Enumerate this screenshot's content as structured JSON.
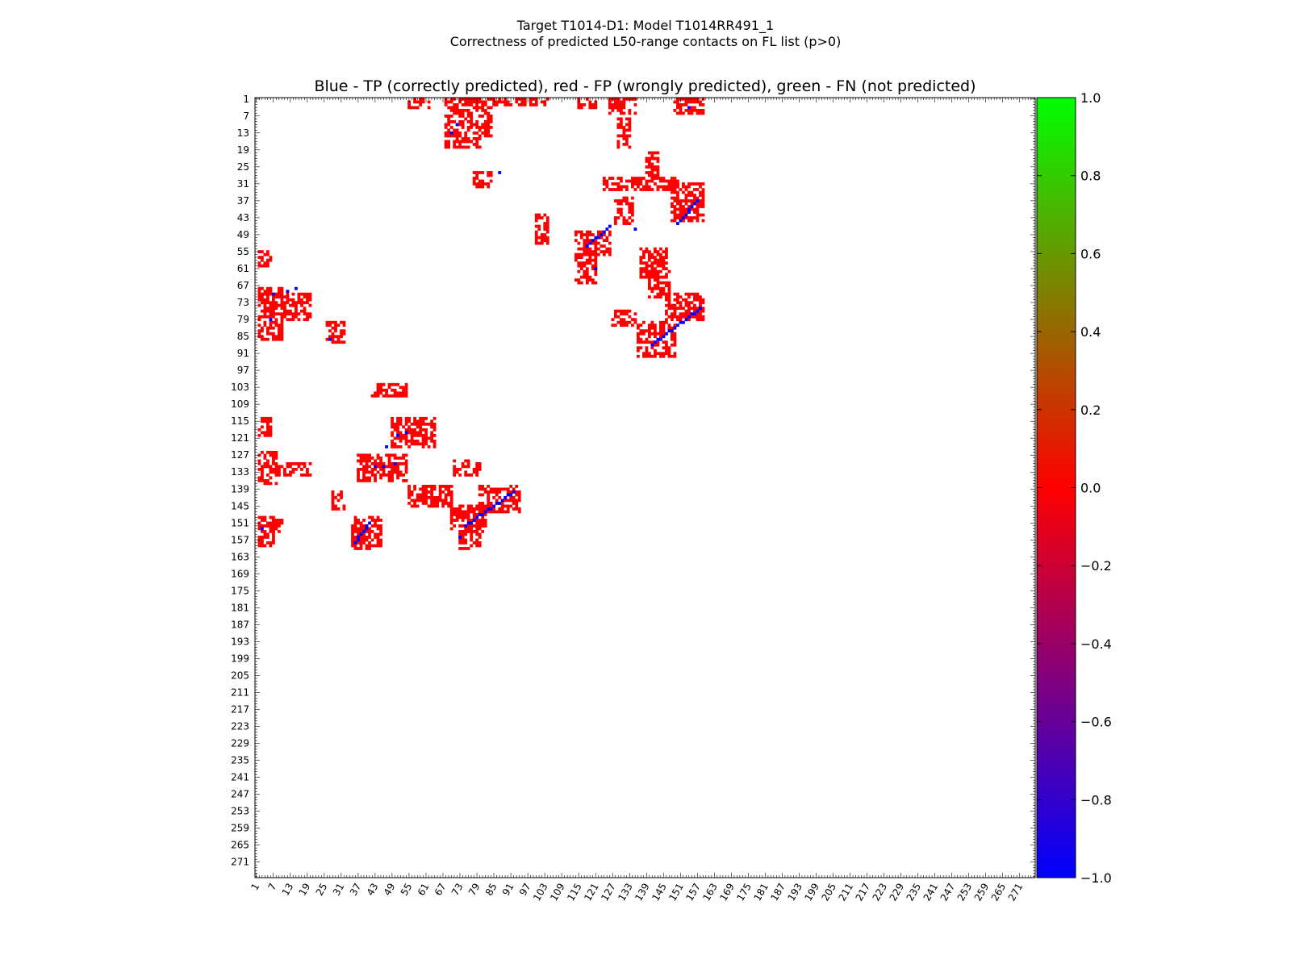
{
  "figure": {
    "title_line1": "Target T1014-D1: Model T1014RR491_1",
    "title_line2": "Correctness of predicted L50-range contacts on FL list (p>0)"
  },
  "chart_data": {
    "type": "heatmap",
    "title": "Blue - TP (correctly predicted), red - FP (wrongly predicted), green - FN (not predicted)",
    "n_residues": 276,
    "x_range": [
      1,
      276
    ],
    "y_range": [
      1,
      276
    ],
    "y_inverted": true,
    "tick_labels": [
      "1",
      "7",
      "13",
      "19",
      "25",
      "31",
      "37",
      "43",
      "49",
      "55",
      "61",
      "67",
      "73",
      "79",
      "85",
      "91",
      "97",
      "103",
      "109",
      "115",
      "121",
      "127",
      "133",
      "139",
      "145",
      "151",
      "157",
      "163",
      "169",
      "175",
      "181",
      "187",
      "193",
      "199",
      "205",
      "211",
      "217",
      "223",
      "229",
      "235",
      "241",
      "247",
      "253",
      "259",
      "265",
      "271"
    ],
    "tick_values": [
      1,
      7,
      13,
      19,
      25,
      31,
      37,
      43,
      49,
      55,
      61,
      67,
      73,
      79,
      85,
      91,
      97,
      103,
      109,
      115,
      121,
      127,
      133,
      139,
      145,
      151,
      157,
      163,
      169,
      175,
      181,
      187,
      193,
      199,
      205,
      211,
      217,
      223,
      229,
      235,
      241,
      247,
      253,
      259,
      265,
      271
    ],
    "colorbar": {
      "min": -1.0,
      "max": 1.0,
      "tick_labels": [
        "1.0",
        "0.8",
        "0.6",
        "0.4",
        "0.2",
        "0.0",
        "−0.2",
        "−0.4",
        "−0.6",
        "−0.8",
        "−1.0"
      ],
      "tick_values": [
        1.0,
        0.8,
        0.6,
        0.4,
        0.2,
        0.0,
        -0.2,
        -0.4,
        -0.6,
        -0.8,
        -1.0
      ],
      "stops": [
        {
          "value": -1.0,
          "color": "#0000ff"
        },
        {
          "value": 0.0,
          "color": "#ff0000"
        },
        {
          "value": 1.0,
          "color": "#00ff00"
        }
      ]
    },
    "categories": [
      {
        "name": "TP",
        "value": -1,
        "color": "#0000ff"
      },
      {
        "name": "FP",
        "value": 0,
        "color": "#ff0000"
      },
      {
        "name": "FN",
        "value": 1,
        "color": "#00ff00"
      }
    ],
    "fp_regions": [
      {
        "x": [
          55,
          62
        ],
        "y": [
          1,
          4
        ]
      },
      {
        "x": [
          68,
          84
        ],
        "y": [
          1,
          14
        ]
      },
      {
        "x": [
          68,
          80
        ],
        "y": [
          15,
          18
        ]
      },
      {
        "x": [
          85,
          104
        ],
        "y": [
          1,
          3
        ]
      },
      {
        "x": [
          115,
          121
        ],
        "y": [
          1,
          4
        ]
      },
      {
        "x": [
          126,
          135
        ],
        "y": [
          1,
          6
        ]
      },
      {
        "x": [
          149,
          159
        ],
        "y": [
          1,
          6
        ]
      },
      {
        "x": [
          129,
          133
        ],
        "y": [
          8,
          18
        ]
      },
      {
        "x": [
          139,
          143
        ],
        "y": [
          20,
          28
        ]
      },
      {
        "x": [
          78,
          84
        ],
        "y": [
          27,
          32
        ]
      },
      {
        "x": [
          124,
          150
        ],
        "y": [
          29,
          33
        ]
      },
      {
        "x": [
          148,
          159
        ],
        "y": [
          31,
          44
        ]
      },
      {
        "x": [
          128,
          134
        ],
        "y": [
          36,
          45
        ]
      },
      {
        "x": [
          100,
          104
        ],
        "y": [
          42,
          52
        ]
      },
      {
        "x": [
          114,
          126
        ],
        "y": [
          48,
          56
        ]
      },
      {
        "x": [
          114,
          121
        ],
        "y": [
          56,
          66
        ]
      },
      {
        "x": [
          137,
          146
        ],
        "y": [
          54,
          64
        ]
      },
      {
        "x": [
          140,
          147
        ],
        "y": [
          62,
          71
        ]
      },
      {
        "x": [
          146,
          159
        ],
        "y": [
          70,
          79
        ]
      },
      {
        "x": [
          127,
          135
        ],
        "y": [
          76,
          81
        ]
      },
      {
        "x": [
          136,
          149
        ],
        "y": [
          80,
          92
        ]
      },
      {
        "x": [
          2,
          10
        ],
        "y": [
          68,
          86
        ]
      },
      {
        "x": [
          10,
          20
        ],
        "y": [
          70,
          79
        ]
      },
      {
        "x": [
          2,
          6
        ],
        "y": [
          55,
          60
        ]
      },
      {
        "x": [
          26,
          32
        ],
        "y": [
          80,
          87
        ]
      },
      {
        "x": [
          42,
          54
        ],
        "y": [
          102,
          106
        ]
      },
      {
        "x": [
          49,
          64
        ],
        "y": [
          114,
          124
        ]
      },
      {
        "x": [
          2,
          6
        ],
        "y": [
          114,
          120
        ]
      },
      {
        "x": [
          2,
          8
        ],
        "y": [
          126,
          137
        ]
      },
      {
        "x": [
          8,
          20
        ],
        "y": [
          130,
          134
        ]
      },
      {
        "x": [
          37,
          54
        ],
        "y": [
          127,
          136
        ]
      },
      {
        "x": [
          71,
          80
        ],
        "y": [
          129,
          134
        ]
      },
      {
        "x": [
          55,
          70
        ],
        "y": [
          138,
          145
        ]
      },
      {
        "x": [
          28,
          32
        ],
        "y": [
          140,
          146
        ]
      },
      {
        "x": [
          80,
          94
        ],
        "y": [
          138,
          147
        ]
      },
      {
        "x": [
          70,
          82
        ],
        "y": [
          145,
          154
        ]
      },
      {
        "x": [
          73,
          80
        ],
        "y": [
          154,
          160
        ]
      },
      {
        "x": [
          35,
          45
        ],
        "y": [
          149,
          160
        ]
      },
      {
        "x": [
          2,
          7
        ],
        "y": [
          149,
          159
        ]
      },
      {
        "x": [
          7,
          10
        ],
        "y": [
          150,
          154
        ]
      }
    ],
    "tp_segments": [
      {
        "x": [
          141,
          158
        ],
        "y": [
          88,
          75
        ]
      },
      {
        "x": [
          75,
          92
        ],
        "y": [
          152,
          140
        ]
      },
      {
        "x": [
          36,
          41
        ],
        "y": [
          158,
          151
        ]
      },
      {
        "x": [
          150,
          157
        ],
        "y": [
          45,
          37
        ]
      },
      {
        "x": [
          118,
          126
        ],
        "y": [
          53,
          46
        ]
      }
    ],
    "tp_points": [
      {
        "x": 72,
        "y": 10
      },
      {
        "x": 70,
        "y": 13
      },
      {
        "x": 154,
        "y": 4
      },
      {
        "x": 87,
        "y": 27
      },
      {
        "x": 7,
        "y": 70
      },
      {
        "x": 12,
        "y": 69
      },
      {
        "x": 15,
        "y": 68
      },
      {
        "x": 6,
        "y": 79
      },
      {
        "x": 27,
        "y": 86
      },
      {
        "x": 51,
        "y": 120
      },
      {
        "x": 54,
        "y": 119
      },
      {
        "x": 47,
        "y": 124
      },
      {
        "x": 43,
        "y": 131
      },
      {
        "x": 46,
        "y": 131
      },
      {
        "x": 50,
        "y": 130
      },
      {
        "x": 73,
        "y": 156
      },
      {
        "x": 3,
        "y": 153
      },
      {
        "x": 121,
        "y": 61
      },
      {
        "x": 135,
        "y": 47
      }
    ]
  }
}
